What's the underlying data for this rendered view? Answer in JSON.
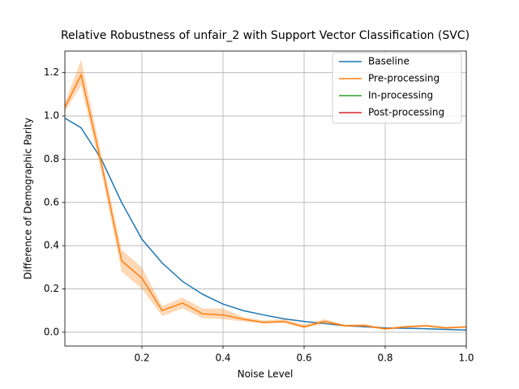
{
  "chart_data": {
    "type": "line",
    "title": "Relative Robustness of unfair_2 with Support Vector Classification (SVC)",
    "x_label": "Noise Level",
    "y_label": "Difference of Demographic Parity",
    "x": [
      0.01,
      0.05,
      0.1,
      0.15,
      0.2,
      0.25,
      0.3,
      0.35,
      0.4,
      0.45,
      0.5,
      0.55,
      0.6,
      0.65,
      0.7,
      0.75,
      0.8,
      0.85,
      0.9,
      0.95,
      1.0
    ],
    "series": [
      {
        "name": "Baseline",
        "color": "#1f77b4",
        "values": [
          0.99,
          0.945,
          0.8,
          0.6,
          0.43,
          0.32,
          0.235,
          0.175,
          0.13,
          0.1,
          0.08,
          0.062,
          0.05,
          0.04,
          0.03,
          0.025,
          0.02,
          0.018,
          0.016,
          0.013,
          0.01
        ]
      },
      {
        "name": "Pre-processing",
        "color": "#ff7f0e",
        "values": [
          1.04,
          1.19,
          0.78,
          0.33,
          0.25,
          0.1,
          0.135,
          0.085,
          0.08,
          0.06,
          0.045,
          0.05,
          0.025,
          0.05,
          0.03,
          0.03,
          0.015,
          0.025,
          0.03,
          0.02,
          0.025
        ],
        "band_upper": [
          1.06,
          1.26,
          0.82,
          0.38,
          0.3,
          0.12,
          0.16,
          0.11,
          0.11,
          0.07,
          0.055,
          0.06,
          0.035,
          0.06,
          0.035,
          0.038,
          0.02,
          0.03,
          0.035,
          0.025,
          0.028
        ],
        "band_lower": [
          1.02,
          1.14,
          0.74,
          0.28,
          0.2,
          0.075,
          0.11,
          0.065,
          0.06,
          0.05,
          0.04,
          0.042,
          0.018,
          0.04,
          0.025,
          0.025,
          0.012,
          0.02,
          0.025,
          0.015,
          0.02
        ]
      },
      {
        "name": "In-processing",
        "color": "#2ca02c",
        "values": [
          null,
          null,
          null,
          null,
          null,
          null,
          null,
          null,
          null,
          null,
          null,
          null,
          null,
          null,
          null,
          null,
          null,
          null,
          null,
          null,
          null
        ]
      },
      {
        "name": "Post-processing",
        "color": "#d62728",
        "values": [
          null,
          null,
          null,
          null,
          null,
          null,
          null,
          null,
          null,
          null,
          null,
          null,
          null,
          null,
          null,
          null,
          null,
          null,
          null,
          null,
          null
        ]
      }
    ],
    "xlim": [
      0.01,
      1.0
    ],
    "ylim": [
      -0.064,
      1.3
    ],
    "xticks": [
      0.2,
      0.4,
      0.6,
      0.8,
      {
        "value": 1,
        "label": "1.0"
      }
    ],
    "yticks": [
      {
        "value": 0,
        "label": "0.0"
      },
      0.2,
      0.4,
      0.6,
      0.8,
      {
        "value": 1,
        "label": "1.0"
      },
      1.2
    ],
    "grid": true,
    "legend": "upper right"
  }
}
